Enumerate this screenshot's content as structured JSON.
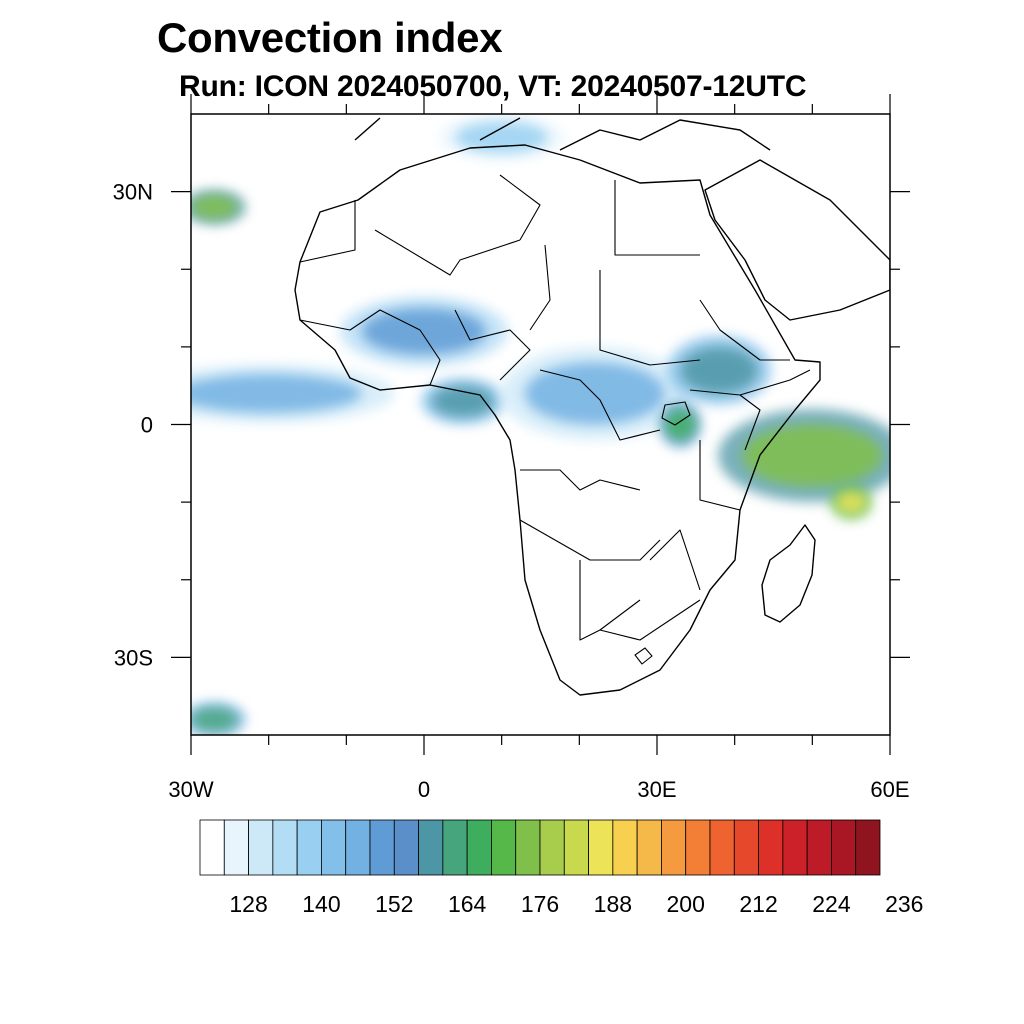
{
  "header": {
    "title": "Convection index",
    "subtitle": "Run: ICON 2024050700,  VT: 20240507-12UTC"
  },
  "map": {
    "extent": {
      "lon_min": -30,
      "lon_max": 60,
      "lat_min": -40,
      "lat_max": 40
    },
    "lat_ticks": [
      {
        "lat": 30,
        "label": "30N"
      },
      {
        "lat": 0,
        "label": "0"
      },
      {
        "lat": -30,
        "label": "30S"
      }
    ],
    "lon_ticks": [
      {
        "lon": -30,
        "label": "30W"
      },
      {
        "lon": 0,
        "label": "0"
      },
      {
        "lon": 30,
        "label": "30E"
      },
      {
        "lon": 60,
        "label": "60E"
      }
    ],
    "minor_step_degrees": 10,
    "coastline_color": "#000000",
    "field_regions": [
      {
        "name": "atlantic-itcz-band",
        "lon": -20,
        "lat": 4,
        "rlon": 12,
        "rlat": 2.5,
        "level": 150
      },
      {
        "name": "gulf-of-guinea",
        "lon": 5,
        "lat": 3,
        "rlon": 4,
        "rlat": 2,
        "level": 172
      },
      {
        "name": "west-africa-sahel",
        "lon": 0,
        "lat": 12,
        "rlon": 8,
        "rlat": 3,
        "level": 156
      },
      {
        "name": "central-africa",
        "lon": 22,
        "lat": 4,
        "rlon": 9,
        "rlat": 4,
        "level": 152
      },
      {
        "name": "ethiopia-highlands",
        "lon": 38,
        "lat": 7,
        "rlon": 5,
        "rlat": 3,
        "level": 168
      },
      {
        "name": "lake-victoria",
        "lon": 33,
        "lat": 0,
        "rlon": 2,
        "rlat": 2,
        "level": 180
      },
      {
        "name": "indian-ocean-band",
        "lon": 50,
        "lat": -4,
        "rlon": 9,
        "rlat": 4,
        "level": 196
      },
      {
        "name": "indian-ocean-core",
        "lon": 55,
        "lat": -10,
        "rlon": 2,
        "rlat": 1.5,
        "level": 212
      },
      {
        "name": "canary-streak",
        "lon": -27,
        "lat": 28,
        "rlon": 3,
        "rlat": 1.5,
        "level": 192
      },
      {
        "name": "sw-atlantic",
        "lon": -27,
        "lat": -38,
        "rlon": 3,
        "rlat": 1.5,
        "level": 176
      },
      {
        "name": "mediterranean",
        "lon": 10,
        "lat": 37,
        "rlon": 6,
        "rlat": 2,
        "level": 140
      }
    ]
  },
  "colorbar": {
    "labels": [
      "128",
      "140",
      "152",
      "164",
      "176",
      "188",
      "200",
      "212",
      "224",
      "236"
    ],
    "colors": [
      "#ffffff",
      "#e8f5fc",
      "#cde9f8",
      "#b3dcf5",
      "#99d0f2",
      "#82c0ea",
      "#72b1e2",
      "#5f9cd5",
      "#5a8fca",
      "#4d96a6",
      "#47a57e",
      "#3ead5e",
      "#55b848",
      "#80c04a",
      "#a8cc4c",
      "#c8d94e",
      "#ece359",
      "#f6d04e",
      "#f5b94a",
      "#f59a3e",
      "#f27f35",
      "#ee6330",
      "#e5482b",
      "#dc3029",
      "#cd2129",
      "#bd1b27",
      "#a81723",
      "#901420"
    ]
  }
}
